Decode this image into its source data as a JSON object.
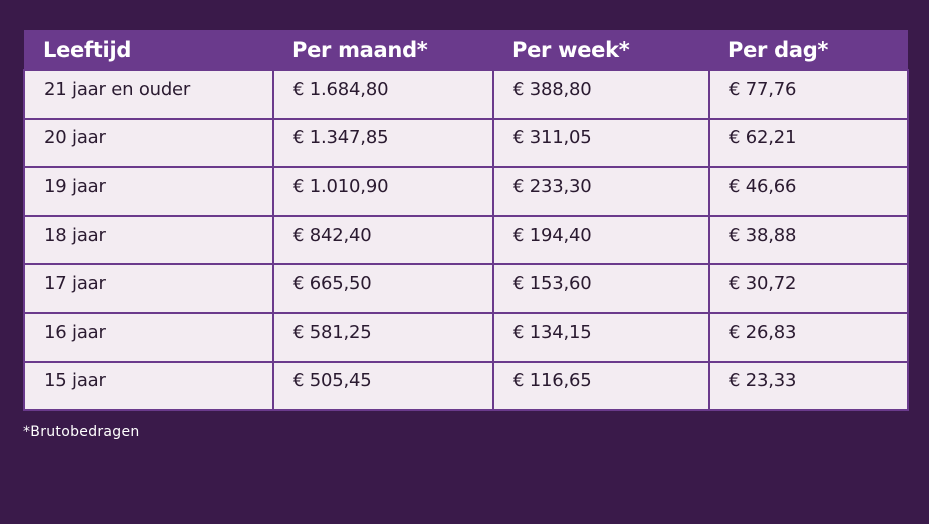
{
  "table": {
    "headers": [
      "Leeftijd",
      "Per maand*",
      "Per week*",
      "Per dag*"
    ],
    "rows": [
      [
        "21 jaar en ouder",
        "€ 1.684,80",
        "€ 388,80",
        "€ 77,76"
      ],
      [
        "20 jaar",
        "€ 1.347,85",
        "€ 311,05",
        "€ 62,21"
      ],
      [
        "19 jaar",
        "€ 1.010,90",
        "€ 233,30",
        "€ 46,66"
      ],
      [
        "18 jaar",
        "€ 842,40",
        "€ 194,40",
        "€ 38,88"
      ],
      [
        "17 jaar",
        "€ 665,50",
        "€ 153,60",
        "€ 30,72"
      ],
      [
        "16 jaar",
        "€ 581,25",
        "€ 134,15",
        "€ 26,83"
      ],
      [
        "15 jaar",
        "€ 505,45",
        "€ 116,65",
        "€ 23,33"
      ]
    ]
  },
  "footnote": "*Brutobedragen",
  "colors": {
    "background": "#3a1a4a",
    "header": "#6a3a8c",
    "cell": "#f3ecf2"
  }
}
